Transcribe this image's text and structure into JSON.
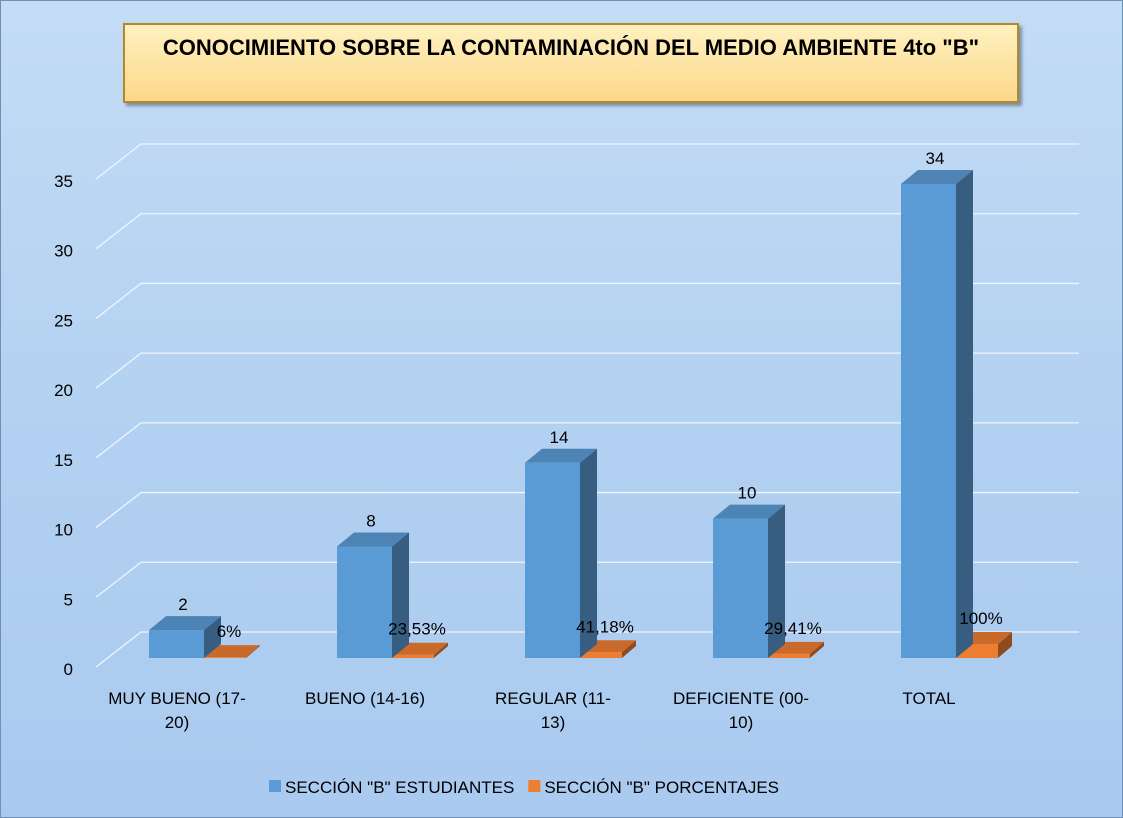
{
  "chart_data": {
    "type": "bar3d",
    "title": "CONOCIMIENTO SOBRE LA CONTAMINACIÓN DEL MEDIO AMBIENTE 4to \"B\"",
    "categories": [
      "MUY BUENO (17-20)",
      "BUENO (14-16)",
      "REGULAR (11-13)",
      "DEFICIENTE (00-10)",
      "TOTAL"
    ],
    "series": [
      {
        "name": "SECCIÓN \"B\" ESTUDIANTES",
        "color": "#5b9bd5",
        "values": [
          2,
          8,
          14,
          10,
          34
        ]
      },
      {
        "name": "SECCIÓN \"B\" PORCENTAJES",
        "color": "#ed7d31",
        "values": [
          0.06,
          0.2353,
          0.4118,
          0.2941,
          1
        ],
        "value_labels": [
          "6%",
          "23,53%",
          "41,18%",
          "29,41%",
          "100%"
        ]
      }
    ],
    "ylim": [
      0,
      35
    ],
    "yticks": [
      0,
      5,
      10,
      15,
      20,
      25,
      30,
      35
    ],
    "grid": true,
    "legend": "bottom"
  }
}
